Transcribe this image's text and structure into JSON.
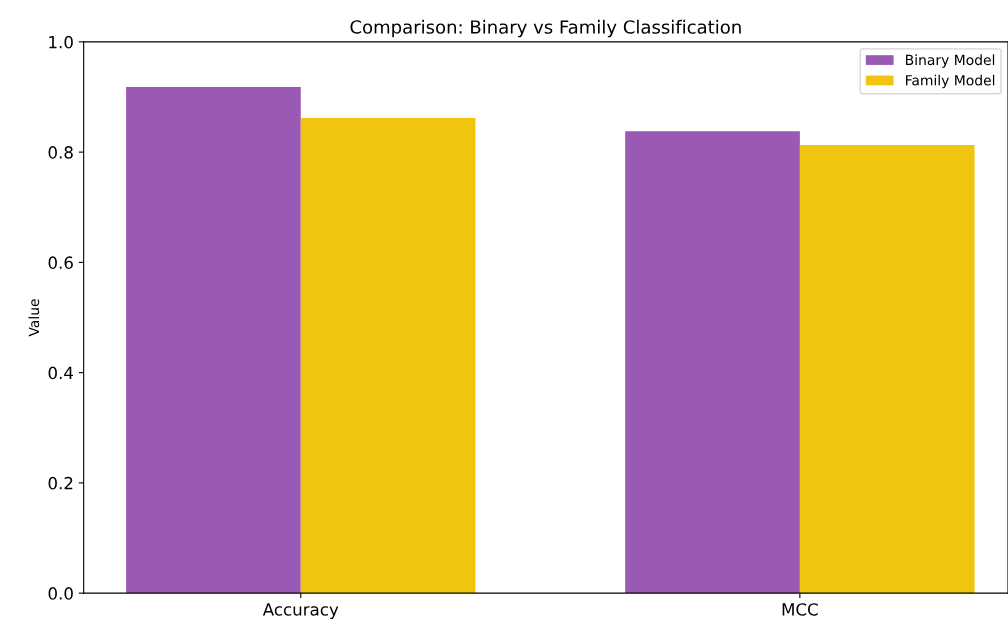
{
  "chart_data": {
    "type": "bar",
    "title": "Comparison: Binary vs Family Classification",
    "ylabel": "Value",
    "categories": [
      "Accuracy",
      "MCC"
    ],
    "series": [
      {
        "name": "Binary Model",
        "color": "#9b59b6",
        "values": [
          0.918,
          0.838
        ]
      },
      {
        "name": "Family Model",
        "color": "#f1c40f",
        "values": [
          0.862,
          0.813
        ]
      }
    ],
    "ylim": [
      0,
      1.0
    ],
    "yticks": [
      {
        "value": 0,
        "label": "0.0"
      },
      0.2,
      0.4,
      0.6,
      0.8,
      {
        "value": 1,
        "label": "1.0"
      }
    ],
    "grid": false,
    "legend": "top right"
  }
}
